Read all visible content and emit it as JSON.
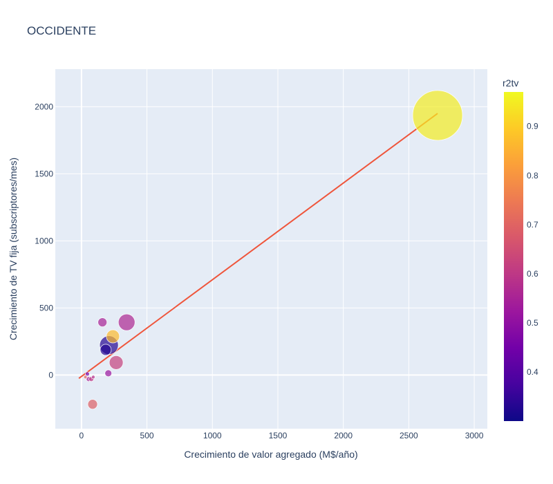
{
  "chart_data": {
    "type": "scatter",
    "title": "OCCIDENTE",
    "xlabel": "Crecimiento de valor agregado (M$/año)",
    "ylabel": "Crecimiento de TV fija (subscriptores/mes)",
    "xlim": [
      -200,
      3100
    ],
    "ylim": [
      -400,
      2280
    ],
    "xticks": [
      0,
      500,
      1000,
      1500,
      2000,
      2500,
      3000
    ],
    "yticks": [
      0,
      500,
      1000,
      1500,
      2000
    ],
    "grid": true,
    "plot_background": "#e5ecf6",
    "colorbar": {
      "title": "r2tv",
      "range": [
        0.3,
        0.97
      ],
      "ticks": [
        0.4,
        0.5,
        0.6,
        0.7,
        0.8,
        0.9
      ],
      "colorscale": [
        "#0d0887",
        "#46039f",
        "#7201a8",
        "#9c179e",
        "#bd3786",
        "#d8576b",
        "#ed7953",
        "#fb9f3a",
        "#fdca26",
        "#f0f921"
      ]
    },
    "points": [
      {
        "x": 2720,
        "y": 1935,
        "size": 72,
        "r2tv": 0.95
      },
      {
        "x": 345,
        "y": 393,
        "size": 24,
        "r2tv": 0.56
      },
      {
        "x": 160,
        "y": 393,
        "size": 13,
        "r2tv": 0.55
      },
      {
        "x": 240,
        "y": 288,
        "size": 19,
        "r2tv": 0.87
      },
      {
        "x": 210,
        "y": 223,
        "size": 27,
        "r2tv": 0.33
      },
      {
        "x": 185,
        "y": 188,
        "size": 16,
        "r2tv": 0.33
      },
      {
        "x": 265,
        "y": 93,
        "size": 20,
        "r2tv": 0.62
      },
      {
        "x": 205,
        "y": 13,
        "size": 10,
        "r2tv": 0.52
      },
      {
        "x": 85,
        "y": -218,
        "size": 14,
        "r2tv": 0.69
      },
      {
        "x": 45,
        "y": 8,
        "size": 6,
        "r2tv": 0.45
      },
      {
        "x": 55,
        "y": -30,
        "size": 7,
        "r2tv": 0.55
      },
      {
        "x": 75,
        "y": -30,
        "size": 7,
        "r2tv": 0.6
      },
      {
        "x": 90,
        "y": -15,
        "size": 5,
        "r2tv": 0.58
      },
      {
        "x": 30,
        "y": -15,
        "size": 5,
        "r2tv": 0.7
      }
    ],
    "trendline": {
      "x": [
        -20,
        2720
      ],
      "y": [
        -25,
        1950
      ],
      "color": "#ef553b"
    }
  }
}
